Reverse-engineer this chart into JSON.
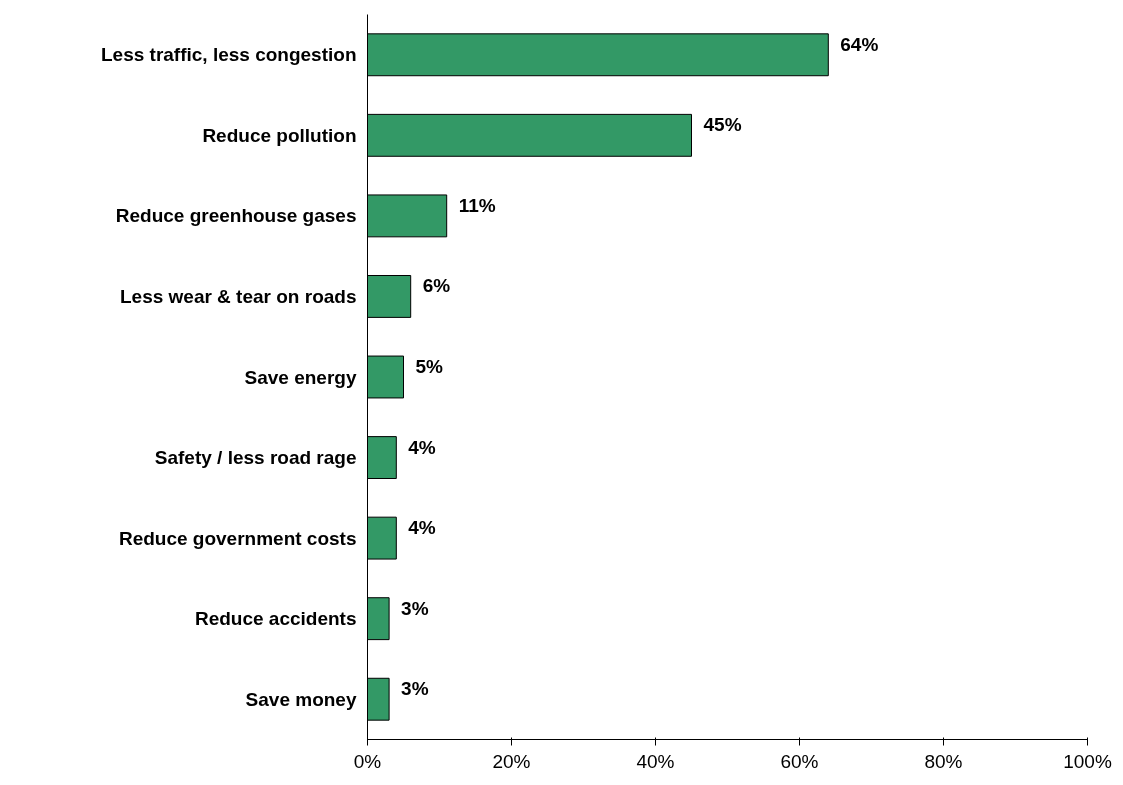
{
  "chart_data": {
    "type": "bar",
    "orientation": "horizontal",
    "categories": [
      "Less traffic, less congestion",
      "Reduce pollution",
      "Reduce greenhouse gases",
      "Less wear & tear on roads",
      "Save energy",
      "Safety / less road rage",
      "Reduce government costs",
      "Reduce accidents",
      "Save money"
    ],
    "values": [
      64,
      45,
      11,
      6,
      5,
      4,
      4,
      3,
      3
    ],
    "value_labels": [
      "64%",
      "45%",
      "11%",
      "6%",
      "5%",
      "4%",
      "4%",
      "3%",
      "3%"
    ],
    "color": "#339966",
    "xlim": [
      0,
      100
    ],
    "xticks": [
      {
        "value": 0,
        "label": "0%"
      },
      {
        "value": 20,
        "label": "20%"
      },
      {
        "value": 40,
        "label": "40%"
      },
      {
        "value": 60,
        "label": "60%"
      },
      {
        "value": 80,
        "label": "80%"
      },
      {
        "value": 100,
        "label": "100%"
      }
    ]
  }
}
